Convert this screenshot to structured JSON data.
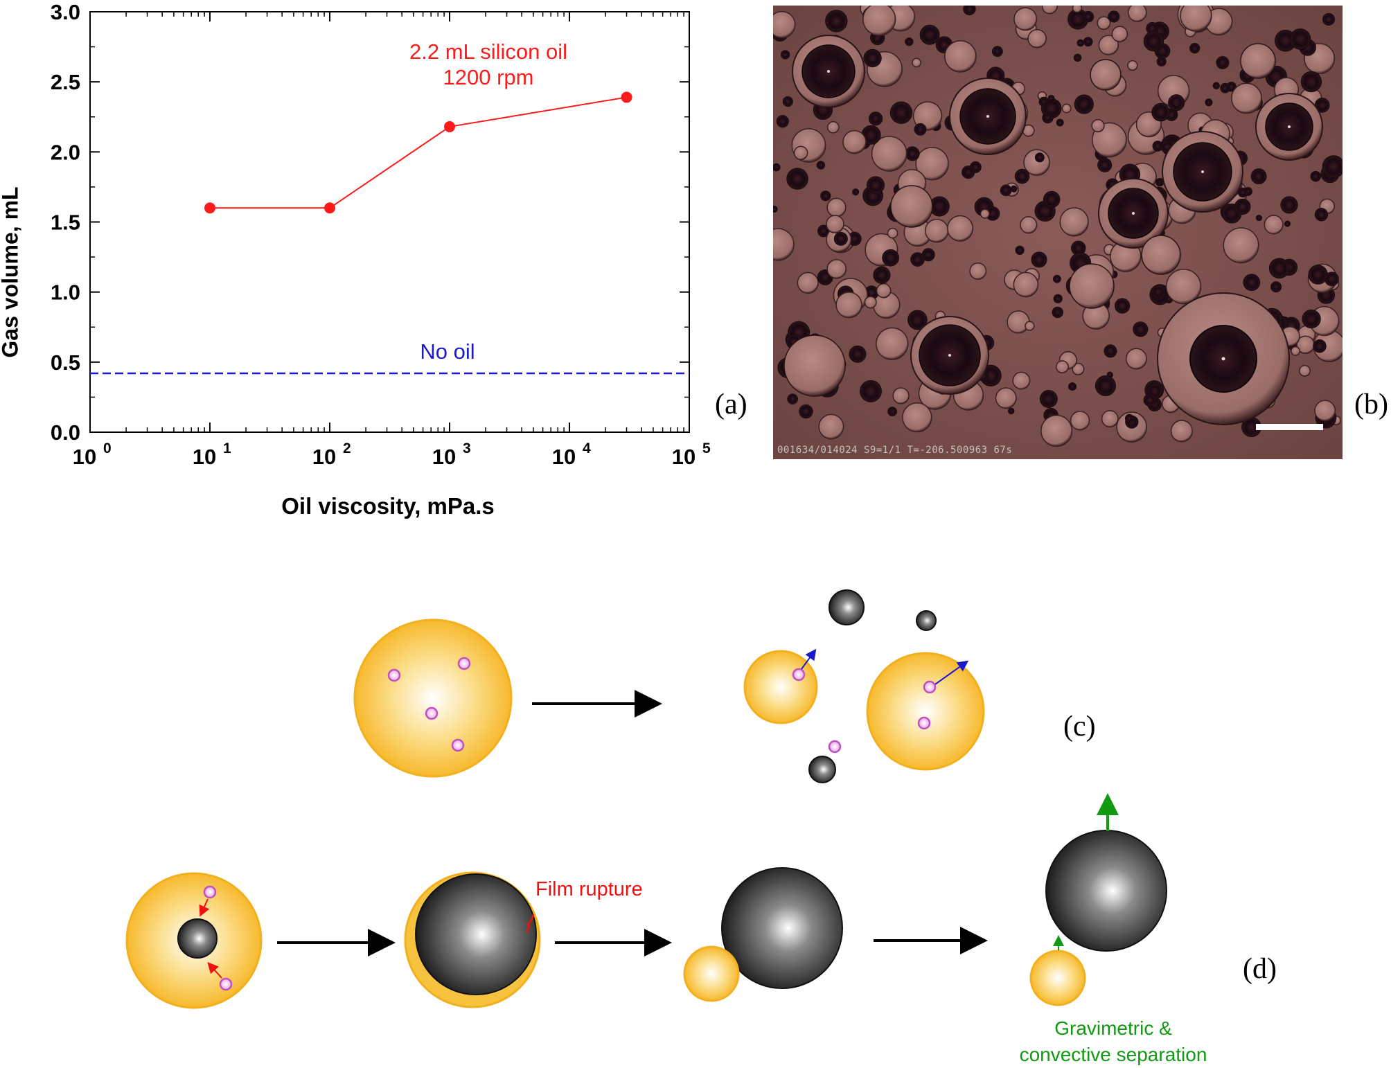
{
  "chart_data": {
    "type": "line",
    "title": "",
    "xlabel": "Oil viscosity, mPa.s",
    "ylabel": "Gas volume, mL",
    "xscale": "log",
    "xlim": [
      1,
      100000
    ],
    "ylim": [
      0.0,
      3.0
    ],
    "x_ticks": [
      "10",
      "10",
      "10",
      "10",
      "10",
      "10"
    ],
    "x_tick_exponents": [
      "0",
      "1",
      "2",
      "3",
      "4",
      "5"
    ],
    "y_ticks": [
      "0.0",
      "0.5",
      "1.0",
      "1.5",
      "2.0",
      "2.5",
      "3.0"
    ],
    "grid": false,
    "series": [
      {
        "x": [
          10,
          100,
          1000,
          30000
        ],
        "y": [
          1.6,
          1.6,
          2.18,
          2.39
        ],
        "color": "#ff1a1a",
        "marker": "circle"
      }
    ],
    "reference_lines": [
      {
        "label": "No oil",
        "y": 0.42,
        "color": "#1a1acc",
        "style": "dashed"
      }
    ],
    "annotations": [
      "2.2 mL silicon oil",
      "1200 rpm"
    ]
  },
  "panels": {
    "a": "(a)",
    "b": "(b)",
    "c": "(c)",
    "d": "(d)"
  },
  "micrograph": {
    "stamp": "001634/014024  S9=1/1  T=-206.500963 67s"
  },
  "diagram": {
    "film_rupture": "Film rupture",
    "separation_line1": "Gravimetric &",
    "separation_line2": "convective separation"
  },
  "colors": {
    "series": "#ff1a1a",
    "no_oil": "#1a1acc",
    "oil_droplet": "#f7c23e",
    "gas_bubble": "#222222",
    "particle": "#d070d0",
    "annotation_green": "#119911"
  }
}
